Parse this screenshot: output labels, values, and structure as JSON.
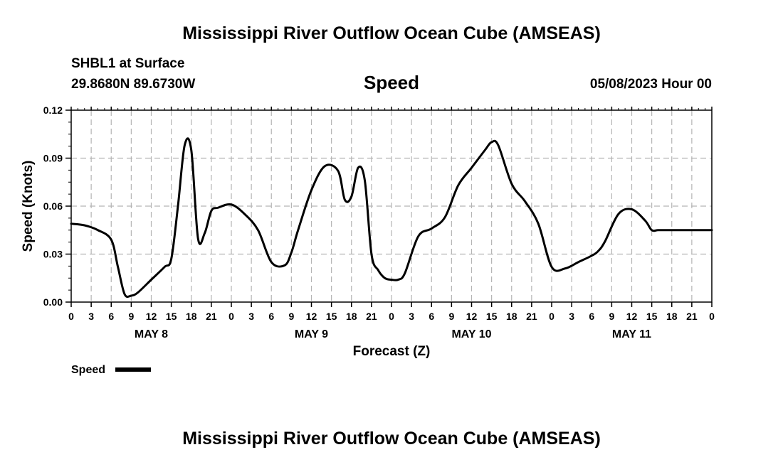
{
  "page": {
    "title": "Mississippi River Outflow Ocean Cube (AMSEAS)",
    "station": "SHBL1 at Surface",
    "coords": "29.8680N  89.6730W",
    "variable": "Speed",
    "date": "05/08/2023 Hour 00",
    "footer_title": "Mississippi River Outflow Ocean Cube (AMSEAS)"
  },
  "chart_data": {
    "type": "line",
    "title": "Speed",
    "xlabel": "Forecast (Z)",
    "ylabel": "Speed (Knots)",
    "ylim": [
      0,
      0.12
    ],
    "yticks": [
      "0.00",
      "0.03",
      "0.06",
      "0.09",
      "0.12"
    ],
    "xlim": [
      0,
      96
    ],
    "xticks": [
      "0",
      "3",
      "6",
      "9",
      "12",
      "15",
      "18",
      "21",
      "0",
      "3",
      "6",
      "9",
      "12",
      "15",
      "18",
      "21",
      "0",
      "3",
      "6",
      "9",
      "12",
      "15",
      "18",
      "21",
      "0",
      "3",
      "6",
      "9",
      "12",
      "15",
      "18",
      "21",
      "0"
    ],
    "day_labels": [
      "MAY 8",
      "MAY 9",
      "MAY 10",
      "MAY 11"
    ],
    "grid": true,
    "legend": "bottom-left",
    "series": [
      {
        "name": "Speed",
        "color": "#000000",
        "x": [
          0,
          2,
          4,
          6,
          7,
          8,
          9,
          10,
          12,
          14,
          15,
          16,
          17,
          18,
          19,
          20,
          21,
          22,
          24,
          26,
          28,
          30,
          32,
          33,
          34,
          36,
          38,
          40,
          41,
          42,
          43,
          44,
          45,
          46,
          47,
          48,
          49,
          50,
          52,
          54,
          56,
          58,
          60,
          62,
          63,
          64,
          66,
          68,
          70,
          72,
          74,
          76,
          78,
          79,
          80,
          82,
          84,
          86,
          87,
          88,
          90,
          92,
          94,
          95,
          96
        ],
        "y": [
          0.049,
          0.048,
          0.045,
          0.039,
          0.022,
          0.005,
          0.004,
          0.006,
          0.014,
          0.022,
          0.027,
          0.06,
          0.098,
          0.095,
          0.04,
          0.043,
          0.057,
          0.059,
          0.061,
          0.055,
          0.045,
          0.025,
          0.023,
          0.031,
          0.045,
          0.07,
          0.085,
          0.082,
          0.064,
          0.066,
          0.084,
          0.076,
          0.03,
          0.02,
          0.015,
          0.014,
          0.014,
          0.018,
          0.041,
          0.046,
          0.053,
          0.073,
          0.084,
          0.095,
          0.1,
          0.098,
          0.074,
          0.063,
          0.049,
          0.022,
          0.021,
          0.025,
          0.029,
          0.032,
          0.038,
          0.055,
          0.058,
          0.051,
          0.045,
          0.045,
          0.045,
          0.045,
          0.045,
          0.045,
          0.045
        ]
      }
    ]
  }
}
